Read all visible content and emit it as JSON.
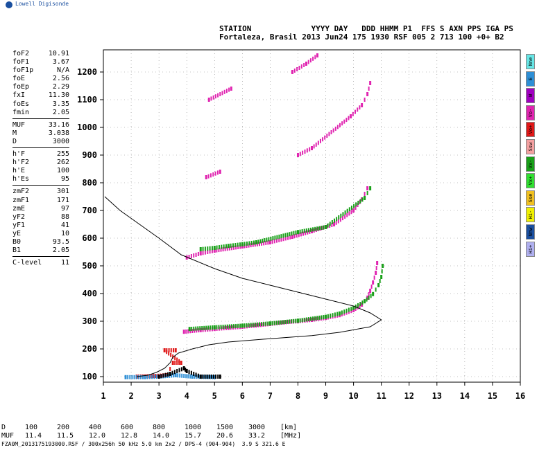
{
  "logo": {
    "text": "Lowell Digisonde",
    "icon": "globe-icon"
  },
  "header": {
    "line1": "STATION             YYYY DAY   DDD HHMM P1  FFS S AXN PPS IGA PS",
    "line2": "Fortaleza, Brasil 2013 Jun24 175 1930 RSF 005 2 713 100 +0+ B2"
  },
  "params": {
    "group1": [
      {
        "k": "foF2",
        "v": "10.91"
      },
      {
        "k": "foF1",
        "v": "3.67"
      },
      {
        "k": "foF1p",
        "v": "N/A"
      },
      {
        "k": "foE",
        "v": "2.56"
      },
      {
        "k": "foEp",
        "v": "2.29"
      },
      {
        "k": "fxI",
        "v": "11.30"
      },
      {
        "k": "foEs",
        "v": "3.35"
      },
      {
        "k": "fmin",
        "v": "2.05"
      }
    ],
    "group2": [
      {
        "k": "MUF",
        "v": "33.16"
      },
      {
        "k": "M",
        "v": "3.038"
      },
      {
        "k": "D",
        "v": "3000"
      }
    ],
    "group3": [
      {
        "k": "h'F",
        "v": "255"
      },
      {
        "k": "h'F2",
        "v": "262"
      },
      {
        "k": "h'E",
        "v": "100"
      },
      {
        "k": "h'Es",
        "v": "95"
      }
    ],
    "group4": [
      {
        "k": "zmF2",
        "v": "301"
      },
      {
        "k": "zmF1",
        "v": "171"
      },
      {
        "k": "zmE",
        "v": "97"
      },
      {
        "k": "yF2",
        "v": "88"
      },
      {
        "k": "yF1",
        "v": "41"
      },
      {
        "k": "yE",
        "v": "10"
      },
      {
        "k": "B0",
        "v": "93.5"
      },
      {
        "k": "B1",
        "v": "2.05"
      }
    ],
    "group5": [
      {
        "k": "C-level",
        "v": "11"
      }
    ]
  },
  "legend": [
    {
      "label": "Nne",
      "color": "#66e6e6"
    },
    {
      "label": "E",
      "color": "#2e8fd6"
    },
    {
      "label": "W",
      "color": "#a000c0"
    },
    {
      "label": "Vo-",
      "color": "#e024b0"
    },
    {
      "label": "Vo+",
      "color": "#e01818"
    },
    {
      "label": "Ssw",
      "color": "#f4a0a0"
    },
    {
      "label": "Vx-",
      "color": "#18a018"
    },
    {
      "label": "Vx+",
      "color": "#30e030"
    },
    {
      "label": "Sse",
      "color": "#f0c020"
    },
    {
      "label": "Hi-",
      "color": "#f0f000"
    },
    {
      "label": "Nnw",
      "color": "#1a4f9f"
    },
    {
      "label": "Hi+",
      "color": "#b0b0f0"
    }
  ],
  "footer": {
    "row1": [
      "D",
      "100",
      "200",
      "400",
      "600",
      "800",
      "1000",
      "1500",
      "3000",
      "[km]"
    ],
    "row2": [
      "MUF",
      "11.4",
      "11.5",
      "12.0",
      "12.8",
      "14.0",
      "15.7",
      "20.6",
      "33.2",
      "[MHz]"
    ],
    "fileinfo": "FZA0M_2013175193000.RSF / 300x256h 50 kHz 5.0 km 2x2 / DPS-4 (904-904)  3.9 S 321.6 E"
  },
  "chart_data": {
    "type": "scatter",
    "title": "",
    "xlabel": "",
    "ylabel": "",
    "xlim": [
      1,
      16
    ],
    "ylim": [
      80,
      1280
    ],
    "x_ticks": [
      1,
      2,
      3,
      4,
      5,
      6,
      7,
      8,
      9,
      10,
      11,
      12,
      13,
      14,
      15,
      16
    ],
    "y_ticks": [
      100,
      200,
      300,
      400,
      500,
      600,
      700,
      800,
      900,
      1000,
      1100,
      1200
    ],
    "grid": true,
    "series": [
      {
        "color": "#e024b0",
        "kind": "O-trace F2",
        "points": [
          [
            3.9,
            262
          ],
          [
            4.5,
            268
          ],
          [
            5,
            272
          ],
          [
            5.5,
            276
          ],
          [
            6,
            280
          ],
          [
            6.5,
            285
          ],
          [
            7,
            290
          ],
          [
            7.5,
            296
          ],
          [
            8,
            300
          ],
          [
            8.5,
            305
          ],
          [
            9,
            312
          ],
          [
            9.5,
            322
          ],
          [
            10,
            340
          ],
          [
            10.3,
            360
          ],
          [
            10.5,
            385
          ],
          [
            10.6,
            410
          ],
          [
            10.7,
            440
          ],
          [
            10.8,
            475
          ],
          [
            10.85,
            510
          ]
        ]
      },
      {
        "color": "#18a018",
        "kind": "X-trace F2",
        "points": [
          [
            4.1,
            272
          ],
          [
            5,
            278
          ],
          [
            6,
            284
          ],
          [
            7,
            292
          ],
          [
            8,
            302
          ],
          [
            9,
            316
          ],
          [
            9.5,
            328
          ],
          [
            10,
            348
          ],
          [
            10.4,
            372
          ],
          [
            10.7,
            398
          ],
          [
            10.9,
            430
          ],
          [
            11.0,
            460
          ],
          [
            11.05,
            500
          ]
        ]
      },
      {
        "color": "#e024b0",
        "kind": "second hop",
        "points": [
          [
            4,
            530
          ],
          [
            4.5,
            545
          ],
          [
            5,
            555
          ],
          [
            6,
            570
          ],
          [
            7,
            585
          ],
          [
            7.8,
            605
          ],
          [
            8.5,
            625
          ],
          [
            9.3,
            650
          ],
          [
            10,
            700
          ],
          [
            10.3,
            740
          ],
          [
            10.5,
            780
          ]
        ]
      },
      {
        "color": "#18a018",
        "kind": "second hop X",
        "points": [
          [
            4.5,
            560
          ],
          [
            5,
            565
          ],
          [
            5.5,
            572
          ],
          [
            6,
            578
          ],
          [
            6.5,
            585
          ],
          [
            8,
            622
          ],
          [
            9,
            640
          ],
          [
            10.4,
            745
          ],
          [
            10.6,
            780
          ]
        ]
      },
      {
        "color": "#e024b0",
        "kind": "third hop",
        "points": [
          [
            4.7,
            820
          ],
          [
            5.2,
            840
          ],
          [
            8,
            900
          ],
          [
            8.5,
            925
          ],
          [
            9.9,
            1040
          ],
          [
            10.3,
            1080
          ],
          [
            10.5,
            1120
          ],
          [
            10.6,
            1160
          ]
        ]
      },
      {
        "color": "#e024b0",
        "kind": "fourth hop",
        "points": [
          [
            4.8,
            1100
          ],
          [
            5.6,
            1140
          ],
          [
            7.8,
            1200
          ],
          [
            8.3,
            1230
          ],
          [
            8.7,
            1260
          ]
        ]
      },
      {
        "color": "#e01818",
        "kind": "E / Es layer",
        "points": [
          [
            2.2,
            100
          ],
          [
            2.8,
            102
          ],
          [
            3.3,
            105
          ],
          [
            3.5,
            150
          ],
          [
            3.8,
            150
          ],
          [
            3.2,
            195
          ],
          [
            3.6,
            195
          ]
        ]
      },
      {
        "color": "#2e8fd6",
        "kind": "E region vertical",
        "points": [
          [
            1.8,
            98
          ],
          [
            2.5,
            98
          ],
          [
            3,
            100
          ],
          [
            3.6,
            105
          ],
          [
            4.2,
            100
          ],
          [
            5,
            98
          ]
        ]
      },
      {
        "color": "#000000",
        "kind": "noise",
        "points": [
          [
            3,
            100
          ],
          [
            3.4,
            110
          ],
          [
            3.9,
            130
          ],
          [
            4,
            120
          ],
          [
            4.5,
            100
          ],
          [
            5.2,
            100
          ]
        ]
      }
    ],
    "profile": {
      "color": "#000000",
      "kind": "electron density profile",
      "points": [
        [
          1.05,
          750
        ],
        [
          1.6,
          700
        ],
        [
          2.3,
          650
        ],
        [
          3,
          600
        ],
        [
          3.8,
          540
        ],
        [
          5,
          490
        ],
        [
          6,
          455
        ],
        [
          7,
          430
        ],
        [
          8,
          405
        ],
        [
          9,
          380
        ],
        [
          10,
          355
        ],
        [
          10.6,
          330
        ],
        [
          11,
          305
        ],
        [
          10.6,
          280
        ],
        [
          9.5,
          260
        ],
        [
          8.5,
          248
        ],
        [
          7,
          237
        ],
        [
          5.5,
          225
        ],
        [
          4.8,
          215
        ],
        [
          4.2,
          200
        ],
        [
          3.7,
          185
        ],
        [
          3.5,
          170
        ],
        [
          3.4,
          150
        ],
        [
          3.2,
          130
        ],
        [
          2.9,
          115
        ],
        [
          2.6,
          105
        ],
        [
          2.2,
          100
        ]
      ]
    }
  }
}
